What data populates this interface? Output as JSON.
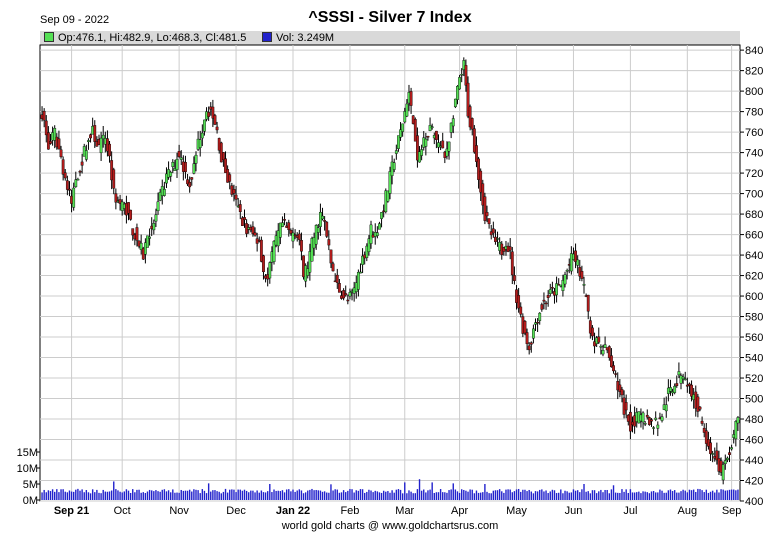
{
  "header": {
    "date": "Sep 09 - 2022",
    "title": "^SSSI - Silver 7 Index"
  },
  "legend": {
    "ohlc_text": "Op:476.1, Hi:482.9, Lo:468.3, Cl:481.5",
    "volume_text": "Vol: 3.249M"
  },
  "footer": "world gold charts @ www.goldchartsrus.com",
  "colors": {
    "up": "#55e055",
    "down": "#b31c1c",
    "wick": "#000000",
    "volume": "#2222cc",
    "grid": "#cccccc",
    "legend_bg": "#d9d9d9"
  },
  "chart_data": {
    "type": "candlestick",
    "title": "^SSSI - Silver 7 Index",
    "y_ticks": [
      400,
      420,
      440,
      460,
      480,
      500,
      520,
      540,
      560,
      580,
      600,
      620,
      640,
      660,
      680,
      700,
      720,
      740,
      760,
      780,
      800,
      820,
      840
    ],
    "ylim": [
      400,
      845
    ],
    "volume_ticks": [
      {
        "v": 0,
        "label": "0M"
      },
      {
        "v": 5,
        "label": "5M"
      },
      {
        "v": 10,
        "label": "10M"
      },
      {
        "v": 15,
        "label": "15M"
      }
    ],
    "volume_ylim": [
      0,
      15
    ],
    "month_labels": [
      "Sep 21",
      "Oct",
      "Nov",
      "Dec",
      "Jan 22",
      "Feb",
      "Mar",
      "Apr",
      "May",
      "Jun",
      "Jul",
      "Aug",
      "Sep"
    ],
    "grid": true,
    "series": [
      {
        "name": "^SSSI",
        "close_anchors": [
          [
            0,
            780
          ],
          [
            3,
            745
          ],
          [
            6,
            758
          ],
          [
            9,
            735
          ],
          [
            12,
            705
          ],
          [
            14,
            690
          ],
          [
            16,
            715
          ],
          [
            18,
            725
          ],
          [
            21,
            748
          ],
          [
            24,
            760
          ],
          [
            27,
            745
          ],
          [
            30,
            755
          ],
          [
            32,
            735
          ],
          [
            34,
            700
          ],
          [
            37,
            690
          ],
          [
            40,
            685
          ],
          [
            43,
            665
          ],
          [
            46,
            650
          ],
          [
            48,
            640
          ],
          [
            50,
            660
          ],
          [
            53,
            670
          ],
          [
            56,
            695
          ],
          [
            59,
            715
          ],
          [
            62,
            725
          ],
          [
            65,
            740
          ],
          [
            68,
            720
          ],
          [
            70,
            710
          ],
          [
            72,
            725
          ],
          [
            74,
            750
          ],
          [
            76,
            765
          ],
          [
            78,
            785
          ],
          [
            80,
            778
          ],
          [
            83,
            760
          ],
          [
            85,
            735
          ],
          [
            88,
            715
          ],
          [
            91,
            695
          ],
          [
            94,
            680
          ],
          [
            97,
            665
          ],
          [
            100,
            660
          ],
          [
            103,
            655
          ],
          [
            105,
            625
          ],
          [
            107,
            615
          ],
          [
            109,
            640
          ],
          [
            112,
            660
          ],
          [
            114,
            670
          ],
          [
            116,
            665
          ],
          [
            118,
            660
          ],
          [
            120,
            665
          ],
          [
            122,
            655
          ],
          [
            124,
            620
          ],
          [
            126,
            630
          ],
          [
            128,
            650
          ],
          [
            130,
            665
          ],
          [
            132,
            680
          ],
          [
            134,
            670
          ],
          [
            136,
            645
          ],
          [
            138,
            620
          ],
          [
            140,
            610
          ],
          [
            143,
            600
          ],
          [
            145,
            595
          ],
          [
            148,
            605
          ],
          [
            151,
            630
          ],
          [
            154,
            650
          ],
          [
            156,
            665
          ],
          [
            158,
            660
          ],
          [
            161,
            680
          ],
          [
            164,
            705
          ],
          [
            167,
            735
          ],
          [
            170,
            760
          ],
          [
            172,
            780
          ],
          [
            174,
            795
          ],
          [
            176,
            770
          ],
          [
            178,
            730
          ],
          [
            180,
            745
          ],
          [
            182,
            760
          ],
          [
            184,
            765
          ],
          [
            186,
            755
          ],
          [
            189,
            745
          ],
          [
            191,
            735
          ],
          [
            193,
            755
          ],
          [
            196,
            790
          ],
          [
            198,
            810
          ],
          [
            200,
            825
          ],
          [
            202,
            780
          ],
          [
            204,
            760
          ],
          [
            206,
            735
          ],
          [
            208,
            705
          ],
          [
            210,
            680
          ],
          [
            212,
            665
          ],
          [
            214,
            655
          ],
          [
            216,
            650
          ],
          [
            218,
            645
          ],
          [
            220,
            655
          ],
          [
            222,
            640
          ],
          [
            224,
            610
          ],
          [
            226,
            590
          ],
          [
            228,
            570
          ],
          [
            231,
            550
          ],
          [
            234,
            575
          ],
          [
            237,
            590
          ],
          [
            240,
            600
          ],
          [
            243,
            605
          ],
          [
            246,
            610
          ],
          [
            249,
            625
          ],
          [
            252,
            640
          ],
          [
            254,
            630
          ],
          [
            256,
            615
          ],
          [
            258,
            595
          ],
          [
            260,
            570
          ],
          [
            262,
            555
          ],
          [
            265,
            550
          ],
          [
            268,
            545
          ],
          [
            270,
            535
          ],
          [
            272,
            520
          ],
          [
            274,
            505
          ],
          [
            276,
            490
          ],
          [
            279,
            475
          ],
          [
            282,
            480
          ],
          [
            285,
            482
          ],
          [
            288,
            478
          ],
          [
            291,
            475
          ],
          [
            294,
            485
          ],
          [
            297,
            505
          ],
          [
            300,
            515
          ],
          [
            302,
            520
          ],
          [
            304,
            525
          ],
          [
            306,
            515
          ],
          [
            308,
            505
          ],
          [
            310,
            495
          ],
          [
            312,
            485
          ],
          [
            314,
            470
          ],
          [
            316,
            455
          ],
          [
            318,
            445
          ],
          [
            320,
            440
          ],
          [
            322,
            425
          ],
          [
            324,
            438
          ],
          [
            326,
            450
          ],
          [
            328,
            462
          ],
          [
            330,
            481.5
          ]
        ],
        "volume_base_m": 2.5,
        "volume_spikes_m": [
          [
            34,
            5.8
          ],
          [
            79,
            5.2
          ],
          [
            108,
            5.0
          ],
          [
            137,
            4.9
          ],
          [
            172,
            5.5
          ],
          [
            179,
            6.5
          ],
          [
            185,
            5.5
          ],
          [
            195,
            5.2
          ],
          [
            210,
            5.0
          ],
          [
            257,
            5.0
          ],
          [
            271,
            4.6
          ],
          [
            330,
            3.249
          ]
        ]
      }
    ]
  }
}
